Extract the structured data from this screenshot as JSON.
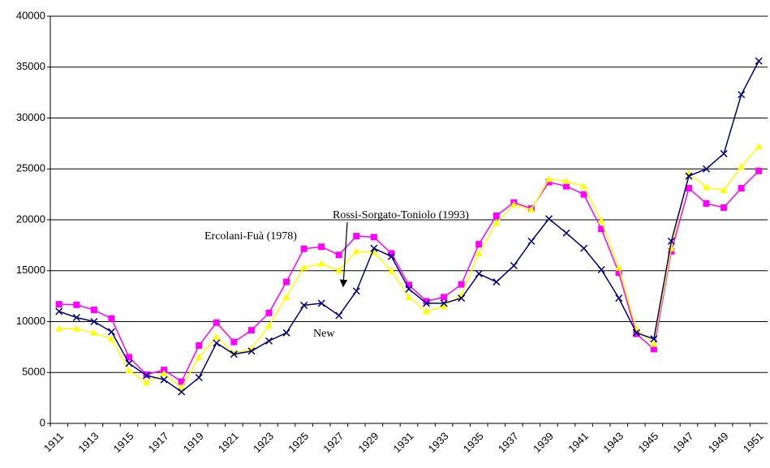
{
  "chart_data": {
    "type": "line",
    "categories": [
      "1911",
      null,
      "1913",
      null,
      "1915",
      null,
      "1917",
      null,
      "1919",
      null,
      "1921",
      null,
      "1923",
      null,
      "1925",
      null,
      "1927",
      null,
      "1929",
      null,
      "1931",
      null,
      "1933",
      null,
      "1935",
      null,
      "1937",
      null,
      "1939",
      null,
      "1941",
      null,
      "1943",
      null,
      "1945",
      null,
      "1947",
      null,
      "1949",
      null,
      "1951"
    ],
    "series": [
      {
        "name": "Ercolani-Fuà (1978)",
        "color": "#ff00ff",
        "marker": "square",
        "values": [
          11700,
          11650,
          11150,
          10300,
          6500,
          4800,
          5250,
          4100,
          7650,
          9900,
          8000,
          9150,
          10850,
          13900,
          17150,
          17350,
          16550,
          18400,
          18300,
          16700,
          13600,
          12000,
          12400,
          13650,
          17600,
          20400,
          21700,
          21100,
          23700,
          23300,
          22500,
          19100,
          14800,
          8800,
          7300,
          16900,
          23100,
          21600,
          21200,
          23100,
          24800
        ]
      },
      {
        "name": "Rossi-Sorgato-Toniolo (1993)",
        "color": "#ffff00",
        "marker": "triangle",
        "values": [
          9300,
          9300,
          8900,
          8300,
          5200,
          4000,
          4900,
          3500,
          6500,
          8500,
          6900,
          7300,
          9600,
          12400,
          15300,
          15700,
          15000,
          16900,
          16800,
          15000,
          12400,
          11000,
          11500,
          12600,
          16700,
          19700,
          21500,
          21000,
          24000,
          23800,
          23300,
          19900,
          15300,
          9300,
          7800,
          17200,
          24600,
          23200,
          22900,
          25200,
          27200
        ]
      },
      {
        "name": "New",
        "color": "#000080",
        "marker": "x",
        "values": [
          11000,
          10400,
          10000,
          9000,
          5900,
          4700,
          4300,
          3100,
          4500,
          7900,
          6800,
          7100,
          8100,
          8900,
          11600,
          11800,
          10600,
          13000,
          17200,
          16400,
          13200,
          11800,
          11800,
          12300,
          14700,
          13900,
          15500,
          17900,
          20100,
          18700,
          17200,
          15100,
          12300,
          8900,
          8300,
          17900,
          24300,
          25000,
          26500,
          32300,
          35600
        ]
      }
    ],
    "ylim": [
      0,
      40000
    ],
    "yticks": [
      0,
      5000,
      10000,
      15000,
      20000,
      25000,
      30000,
      35000,
      40000
    ],
    "grid": true
  }
}
